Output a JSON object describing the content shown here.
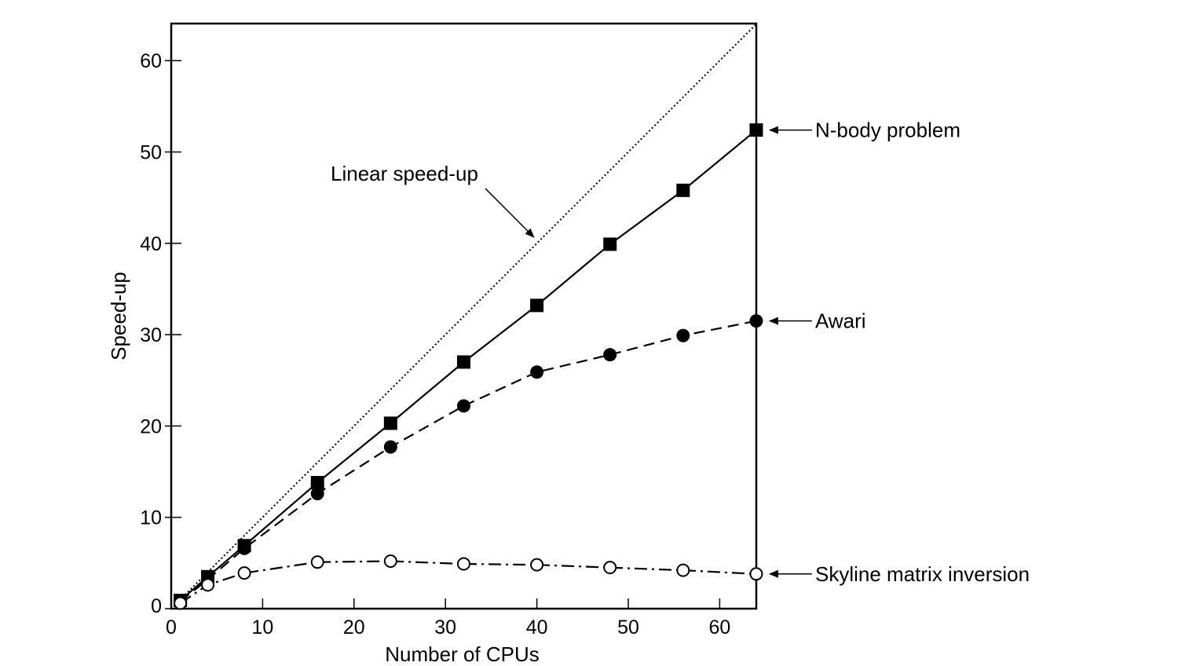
{
  "chart_data": {
    "type": "line",
    "title": "",
    "xlabel": "Number of CPUs",
    "ylabel": "Speed-up",
    "xlim": [
      0,
      64
    ],
    "ylim": [
      0,
      64
    ],
    "x_ticks": [
      0,
      10,
      20,
      30,
      40,
      50,
      60
    ],
    "y_ticks": [
      0,
      10,
      20,
      30,
      40,
      50,
      60
    ],
    "grid": false,
    "series": [
      {
        "name": "N-body problem",
        "line_style": "solid",
        "marker": "filled-square",
        "x": [
          1,
          4,
          8,
          16,
          24,
          32,
          40,
          48,
          56,
          64
        ],
        "y": [
          0.9,
          3.5,
          6.9,
          13.8,
          20.3,
          27.0,
          33.2,
          39.9,
          45.8,
          52.4
        ]
      },
      {
        "name": "Awari",
        "line_style": "dashed",
        "marker": "filled-circle",
        "x": [
          1,
          4,
          8,
          16,
          24,
          32,
          40,
          48,
          56,
          64
        ],
        "y": [
          0.8,
          3.2,
          6.6,
          12.6,
          17.7,
          22.2,
          25.9,
          27.8,
          29.9,
          31.5
        ]
      },
      {
        "name": "Skyline matrix inversion",
        "line_style": "dash-dot",
        "marker": "open-circle",
        "x": [
          1,
          4,
          8,
          16,
          24,
          32,
          40,
          48,
          56,
          64
        ],
        "y": [
          0.6,
          2.6,
          3.9,
          5.1,
          5.2,
          4.9,
          4.8,
          4.5,
          4.2,
          3.8
        ]
      }
    ],
    "reference_line": {
      "label": "Linear speed-up",
      "line_style": "dotted",
      "x": [
        0,
        64
      ],
      "y": [
        0,
        64
      ]
    },
    "annotations": [
      {
        "text": "Linear speed-up",
        "target": [
          39.5,
          40.5
        ]
      },
      {
        "text": "N-body problem",
        "target": [
          64,
          52.4
        ]
      },
      {
        "text": "Awari",
        "target": [
          64,
          31.5
        ]
      },
      {
        "text": "Skyline matrix inversion",
        "target": [
          64,
          3.8
        ]
      }
    ]
  }
}
